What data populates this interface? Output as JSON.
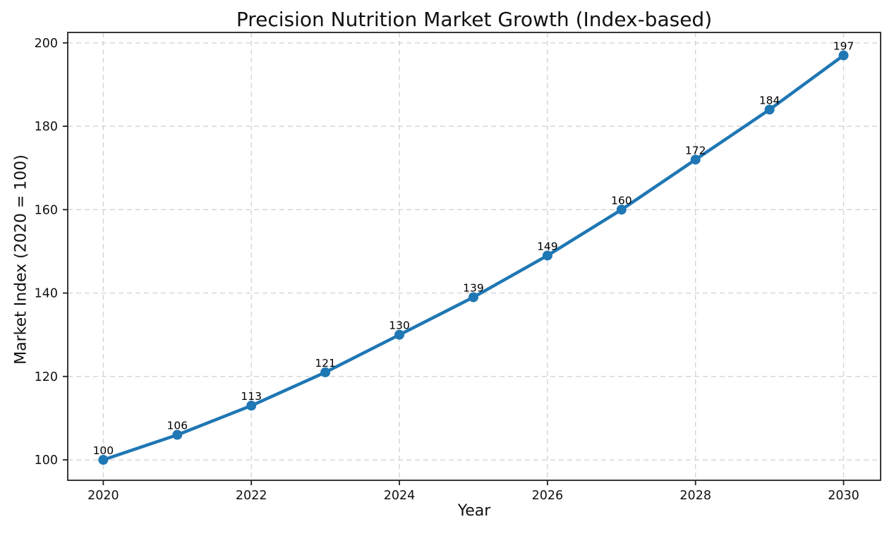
{
  "chart_data": {
    "type": "line",
    "title": "Precision Nutrition Market Growth (Index-based)",
    "xlabel": "Year",
    "ylabel": "Market Index (2020 = 100)",
    "series": [
      {
        "name": "Market Index",
        "x": [
          2020,
          2021,
          2022,
          2023,
          2024,
          2025,
          2026,
          2027,
          2028,
          2029,
          2030
        ],
        "values": [
          100,
          106,
          113,
          121,
          130,
          139,
          149,
          160,
          172,
          184,
          197
        ],
        "point_labels": [
          "100",
          "106",
          "113",
          "121",
          "130",
          "139",
          "149",
          "160",
          "172",
          "184",
          "197"
        ]
      }
    ],
    "xticks": {
      "values": [
        2020,
        2022,
        2024,
        2026,
        2028,
        2030
      ],
      "labels": [
        "2020",
        "2022",
        "2024",
        "2026",
        "2028",
        "2030"
      ]
    },
    "yticks": {
      "values": [
        100,
        120,
        140,
        160,
        180,
        200
      ],
      "labels": [
        "100",
        "120",
        "140",
        "160",
        "180",
        "200"
      ]
    },
    "xlim": [
      2019.52,
      2030.5
    ],
    "ylim": [
      95.1,
      202.5
    ],
    "grid": true,
    "grid_style": "dashed",
    "legend": "none",
    "marker": "circle",
    "colors": {
      "line": "#1f77b4",
      "marker": "#1f77b4",
      "grid": "#d4d4d4",
      "axis": "#222222",
      "text": "#111111",
      "background": "#ffffff"
    }
  }
}
